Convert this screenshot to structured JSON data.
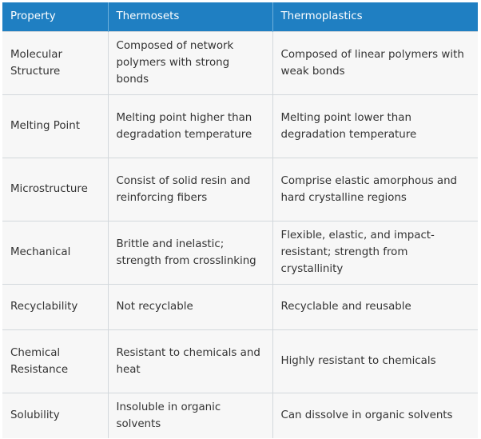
{
  "table": {
    "headers": [
      "Property",
      "Thermosets",
      "Thermoplastics"
    ],
    "rows": [
      [
        "Molecular Structure",
        "Composed of network polymers with strong bonds",
        "Composed of linear polymers with weak bonds"
      ],
      [
        "Melting Point",
        "Melting point higher than degradation temperature",
        "Melting point lower than degradation temperature"
      ],
      [
        "Microstructure",
        "Consist of solid resin and reinforcing fibers",
        "Comprise elastic amorphous and hard crystalline regions"
      ],
      [
        "Mechanical",
        "Brittle and inelastic; strength from crosslinking",
        "Flexible, elastic, and impact-resistant; strength from crystallinity"
      ],
      [
        "Recyclability",
        "Not recyclable",
        "Recyclable and reusable"
      ],
      [
        "Chemical Resistance",
        "Resistant to chemicals and heat",
        "Highly resistant to chemicals"
      ],
      [
        "Solubility",
        "Insoluble in organic solvents",
        "Can dissolve in organic solvents"
      ]
    ]
  }
}
